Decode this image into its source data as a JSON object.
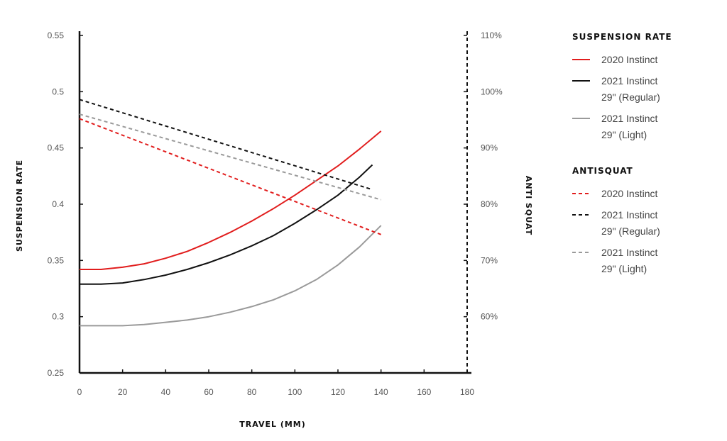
{
  "chart_data": {
    "type": "line",
    "xlabel": "TRAVEL (MM)",
    "ylabel": "SUSPENSION RATE",
    "y2label": "ANTI SQUAT",
    "xlim": [
      0,
      180
    ],
    "ylim": [
      0.25,
      0.55
    ],
    "y2lim": [
      50,
      110
    ],
    "x_ticks": [
      "0",
      "20",
      "40",
      "60",
      "80",
      "100",
      "120",
      "140",
      "160",
      "180"
    ],
    "y_ticks": [
      "0.25",
      "0.3",
      "0.35",
      "0.4",
      "0.45",
      "0.5",
      "0.55"
    ],
    "y2_ticks": [
      "60%",
      "70%",
      "80%",
      "90%",
      "100%",
      "110%"
    ],
    "legend": {
      "groups": [
        {
          "title": "SUSPENSION RATE",
          "entries": [
            {
              "label": "2020 Instinct",
              "color": "#e11d1d",
              "dash": false
            },
            {
              "label": "2021 Instinct",
              "label2": "29\" (Regular)",
              "color": "#111111",
              "dash": false
            },
            {
              "label": "2021 Instinct",
              "label2": "29\" (Light)",
              "color": "#9a9a9a",
              "dash": false
            }
          ]
        },
        {
          "title": "ANTISQUAT",
          "entries": [
            {
              "label": "2020 Instinct",
              "color": "#e11d1d",
              "dash": true
            },
            {
              "label": "2021 Instinct",
              "label2": "29\" (Regular)",
              "color": "#111111",
              "dash": true
            },
            {
              "label": "2021 Instinct",
              "label2": "29\" (Light)",
              "color": "#9a9a9a",
              "dash": true
            }
          ]
        }
      ]
    },
    "series": [
      {
        "group": "suspension",
        "color": "#e11d1d",
        "dash": false,
        "axis": "y",
        "x": [
          0,
          10,
          20,
          30,
          40,
          50,
          60,
          70,
          80,
          90,
          100,
          110,
          120,
          130,
          140
        ],
        "y": [
          0.342,
          0.342,
          0.344,
          0.347,
          0.352,
          0.358,
          0.366,
          0.375,
          0.385,
          0.396,
          0.408,
          0.421,
          0.434,
          0.449,
          0.465
        ]
      },
      {
        "group": "suspension",
        "color": "#111111",
        "dash": false,
        "axis": "y",
        "x": [
          0,
          10,
          20,
          30,
          40,
          50,
          60,
          70,
          80,
          90,
          100,
          110,
          120,
          130,
          136
        ],
        "y": [
          0.329,
          0.329,
          0.33,
          0.333,
          0.337,
          0.342,
          0.348,
          0.355,
          0.363,
          0.372,
          0.383,
          0.395,
          0.408,
          0.424,
          0.435
        ]
      },
      {
        "group": "suspension",
        "color": "#9a9a9a",
        "dash": false,
        "axis": "y",
        "x": [
          0,
          10,
          20,
          30,
          40,
          50,
          60,
          70,
          80,
          90,
          100,
          110,
          120,
          130,
          140
        ],
        "y": [
          0.292,
          0.292,
          0.292,
          0.293,
          0.295,
          0.297,
          0.3,
          0.304,
          0.309,
          0.315,
          0.323,
          0.333,
          0.346,
          0.362,
          0.381
        ]
      },
      {
        "group": "antisquat",
        "color": "#e11d1d",
        "dash": true,
        "axis": "y2",
        "x": [
          0,
          140
        ],
        "y": [
          95.2,
          74.6
        ]
      },
      {
        "group": "antisquat",
        "color": "#111111",
        "dash": true,
        "axis": "y2",
        "x": [
          0,
          136
        ],
        "y": [
          98.6,
          82.6
        ]
      },
      {
        "group": "antisquat",
        "color": "#9a9a9a",
        "dash": true,
        "axis": "y2",
        "x": [
          0,
          140
        ],
        "y": [
          96.0,
          80.8
        ]
      }
    ]
  }
}
